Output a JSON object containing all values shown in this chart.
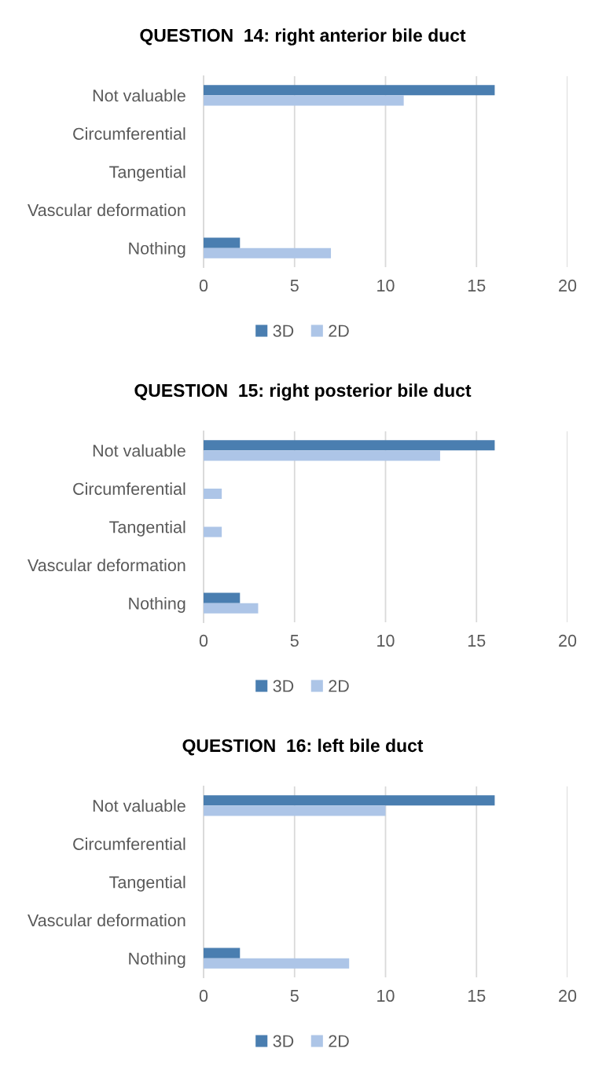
{
  "chart_data": [
    {
      "type": "bar",
      "orientation": "horizontal",
      "title": "QUESTION  14: right anterior bile duct",
      "categories": [
        "Not valuable",
        "Circumferential",
        "Tangential",
        "Vascular deformation",
        "Nothing"
      ],
      "series": [
        {
          "name": "3D",
          "color": "#4a7eb0",
          "values": [
            16,
            0,
            0,
            0,
            2
          ]
        },
        {
          "name": "2D",
          "color": "#adc5e7",
          "values": [
            11,
            0,
            0,
            0,
            7
          ]
        }
      ],
      "xlim": [
        0,
        20
      ],
      "xticks": [
        0,
        5,
        10,
        15,
        20
      ],
      "grid": "x",
      "legend": "bottom"
    },
    {
      "type": "bar",
      "orientation": "horizontal",
      "title": "QUESTION  15: right posterior bile duct",
      "categories": [
        "Not valuable",
        "Circumferential",
        "Tangential",
        "Vascular deformation",
        "Nothing"
      ],
      "series": [
        {
          "name": "3D",
          "color": "#4a7eb0",
          "values": [
            16,
            0,
            0,
            0,
            2
          ]
        },
        {
          "name": "2D",
          "color": "#adc5e7",
          "values": [
            13,
            1,
            1,
            0,
            3
          ]
        }
      ],
      "xlim": [
        0,
        20
      ],
      "xticks": [
        0,
        5,
        10,
        15,
        20
      ],
      "grid": "x",
      "legend": "bottom"
    },
    {
      "type": "bar",
      "orientation": "horizontal",
      "title": "QUESTION  16: left bile duct",
      "categories": [
        "Not valuable",
        "Circumferential",
        "Tangential",
        "Vascular deformation",
        "Nothing"
      ],
      "series": [
        {
          "name": "3D",
          "color": "#4a7eb0",
          "values": [
            16,
            0,
            0,
            0,
            2
          ]
        },
        {
          "name": "2D",
          "color": "#adc5e7",
          "values": [
            10,
            0,
            0,
            0,
            8
          ]
        }
      ],
      "xlim": [
        0,
        20
      ],
      "xticks": [
        0,
        5,
        10,
        15,
        20
      ],
      "grid": "x",
      "legend": "bottom"
    }
  ]
}
